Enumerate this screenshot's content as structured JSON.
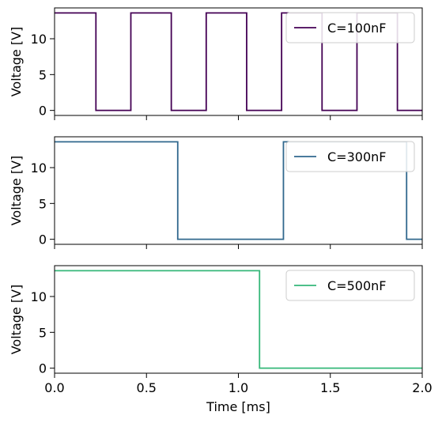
{
  "chart_data": [
    {
      "type": "line",
      "step": true,
      "series": [
        {
          "name": "C=100nF",
          "color": "#440154",
          "x": [
            0,
            0.225,
            0.225,
            0.415,
            0.415,
            0.635,
            0.635,
            0.825,
            0.825,
            1.045,
            1.045,
            1.235,
            1.235,
            1.455,
            1.455,
            1.645,
            1.645,
            1.865,
            1.865,
            2.0
          ],
          "y": [
            13.6,
            13.6,
            0,
            0,
            13.6,
            13.6,
            0,
            0,
            13.6,
            13.6,
            0,
            0,
            13.6,
            13.6,
            0,
            0,
            13.6,
            13.6,
            0,
            0
          ]
        }
      ],
      "ylabel": "Voltage [V]",
      "xlim": [
        0,
        2.0
      ],
      "ylim": [
        -0.7,
        14.3
      ],
      "yticks": [
        "0",
        "5",
        "10"
      ],
      "legend": "top-right"
    },
    {
      "type": "line",
      "step": true,
      "series": [
        {
          "name": "C=300nF",
          "color": "#31688e",
          "x": [
            0,
            0.67,
            0.67,
            1.245,
            1.245,
            1.915,
            1.915,
            2.0
          ],
          "y": [
            13.6,
            13.6,
            0,
            0,
            13.6,
            13.6,
            0,
            0
          ]
        }
      ],
      "ylabel": "Voltage [V]",
      "xlim": [
        0,
        2.0
      ],
      "ylim": [
        -0.7,
        14.3
      ],
      "yticks": [
        "0",
        "5",
        "10"
      ],
      "legend": "top-right"
    },
    {
      "type": "line",
      "step": true,
      "series": [
        {
          "name": "C=500nF",
          "color": "#35b779",
          "x": [
            0,
            1.115,
            1.115,
            2.0
          ],
          "y": [
            13.6,
            13.6,
            0,
            0
          ]
        }
      ],
      "ylabel": "Voltage [V]",
      "xlabel": "Time [ms]",
      "xlim": [
        0,
        2.0
      ],
      "ylim": [
        -0.7,
        14.3
      ],
      "yticks": [
        "0",
        "5",
        "10"
      ],
      "xticks": [
        "0.0",
        "0.5",
        "1.0",
        "1.5",
        "2.0"
      ],
      "legend": "top-right"
    }
  ]
}
